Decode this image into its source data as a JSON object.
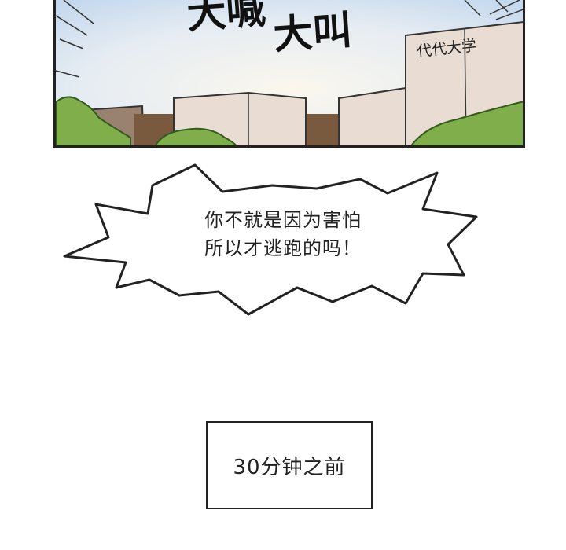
{
  "panel": {
    "sfx_line1": "大喊",
    "sfx_line2": "大叫",
    "building_sign": "代代大学"
  },
  "speech_bubble": {
    "line1": "你不就是因为害怕",
    "line2": "所以才逃跑的吗！"
  },
  "caption": {
    "text": "30分钟之前"
  },
  "colors": {
    "sky_top": "#cfe0f2",
    "sky_bottom": "#f3ede2",
    "building": "#e9ddd3",
    "building_shade": "#d6c4b6",
    "foliage": "#7fae4a",
    "dark_building": "#9a8270",
    "ink": "#222222"
  }
}
